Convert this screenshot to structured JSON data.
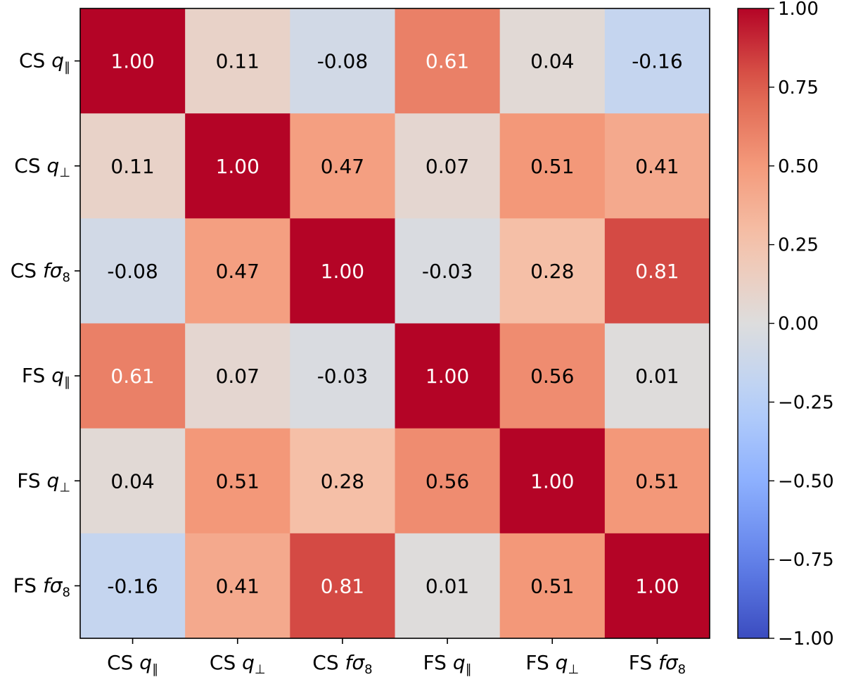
{
  "chart_data": {
    "type": "heatmap",
    "title": "",
    "rows": [
      "CS q_par",
      "CS q_perp",
      "CS fσ8",
      "FS q_par",
      "FS q_perp",
      "FS fσ8"
    ],
    "cols": [
      "CS q_par",
      "CS q_perp",
      "CS fσ8",
      "FS q_par",
      "FS q_perp",
      "FS fσ8"
    ],
    "row_labels": [
      {
        "prefix": "CS ",
        "symbol": "q",
        "subscript": "∥"
      },
      {
        "prefix": "CS ",
        "symbol": "q",
        "subscript": "⊥"
      },
      {
        "prefix": "CS ",
        "symbol": "fσ",
        "subscript": "8"
      },
      {
        "prefix": "FS ",
        "symbol": "q",
        "subscript": "∥"
      },
      {
        "prefix": "FS ",
        "symbol": "q",
        "subscript": "⊥"
      },
      {
        "prefix": "FS ",
        "symbol": "fσ",
        "subscript": "8"
      }
    ],
    "col_labels": [
      {
        "prefix": "CS ",
        "symbol": "q",
        "subscript": "∥"
      },
      {
        "prefix": "CS ",
        "symbol": "q",
        "subscript": "⊥"
      },
      {
        "prefix": "CS ",
        "symbol": "fσ",
        "subscript": "8"
      },
      {
        "prefix": "FS ",
        "symbol": "q",
        "subscript": "∥"
      },
      {
        "prefix": "FS ",
        "symbol": "q",
        "subscript": "⊥"
      },
      {
        "prefix": "FS ",
        "symbol": "fσ",
        "subscript": "8"
      }
    ],
    "values": [
      [
        1.0,
        0.11,
        -0.08,
        0.61,
        0.04,
        -0.16
      ],
      [
        0.11,
        1.0,
        0.47,
        0.07,
        0.51,
        0.41
      ],
      [
        -0.08,
        0.47,
        1.0,
        -0.03,
        0.28,
        0.81
      ],
      [
        0.61,
        0.07,
        -0.03,
        1.0,
        0.56,
        0.01
      ],
      [
        0.04,
        0.51,
        0.28,
        0.56,
        1.0,
        0.51
      ],
      [
        -0.16,
        0.41,
        0.81,
        0.01,
        0.51,
        1.0
      ]
    ],
    "value_format": "2 decimals",
    "annotation_colors": {
      "light": "#ffffff",
      "dark": "#000000"
    },
    "colormap": "coolwarm",
    "vmin": -1.0,
    "vmax": 1.0,
    "colorbar": {
      "ticks": [
        1.0,
        0.75,
        0.5,
        0.25,
        0.0,
        -0.25,
        -0.5,
        -0.75,
        -1.0
      ],
      "tick_labels": [
        "1.00",
        "0.75",
        "0.50",
        "0.25",
        "0.00",
        "−0.25",
        "−0.50",
        "−0.75",
        "−1.00"
      ],
      "placement": "right"
    },
    "grid": false
  }
}
